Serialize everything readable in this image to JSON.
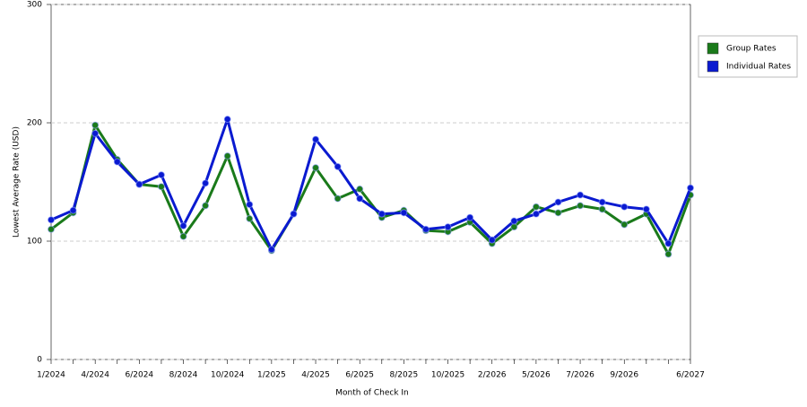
{
  "chart_data": {
    "type": "line",
    "x_label": "Month of Check In",
    "y_label": "Lowest Average Rate (USD)",
    "categories": [
      "1/2024",
      null,
      "4/2024",
      null,
      "6/2024",
      null,
      "8/2024",
      null,
      "10/2024",
      null,
      "1/2025",
      null,
      "4/2025",
      null,
      "6/2025",
      null,
      "8/2025",
      null,
      "10/2025",
      null,
      "2/2026",
      null,
      "5/2026",
      null,
      "7/2026",
      null,
      "9/2026",
      null,
      null,
      "6/2027"
    ],
    "series": [
      {
        "name": "Group Rates",
        "color": "#1a7a1a",
        "values": [
          110,
          124,
          198,
          169,
          148,
          146,
          104,
          130,
          172,
          119,
          92,
          123,
          162,
          136,
          144,
          120,
          126,
          109,
          108,
          116,
          98,
          112,
          129,
          124,
          130,
          127,
          114,
          123,
          89,
          139
        ]
      },
      {
        "name": "Individual Rates",
        "color": "#0a1ad0",
        "values": [
          118,
          126,
          191,
          167,
          148,
          156,
          113,
          149,
          203,
          131,
          93,
          123,
          186,
          163,
          136,
          123,
          124,
          110,
          112,
          120,
          101,
          117,
          123,
          133,
          139,
          133,
          129,
          127,
          98,
          145
        ]
      }
    ],
    "ylim": [
      0,
      300
    ],
    "yticks": [
      0,
      100,
      200,
      300
    ],
    "grid": true,
    "legend": "right"
  }
}
